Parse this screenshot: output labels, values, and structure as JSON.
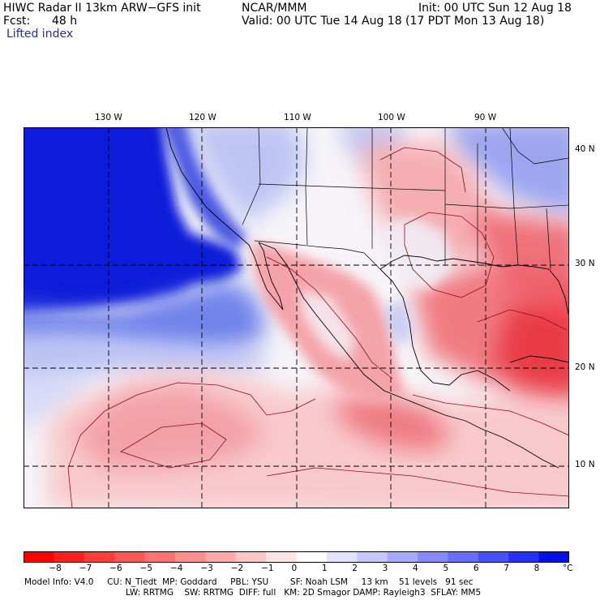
{
  "header": {
    "title_line": "HIWC Radar II 13km ARW−GFS init",
    "org": "NCAR/MMM",
    "fcst_label": "Fcst:",
    "fcst_value": "48 h",
    "init": "Init: 00 UTC Sun 12 Aug 18",
    "valid": "Valid: 00 UTC Tue 14 Aug 18 (17 PDT Mon 13 Aug 18)",
    "field": "Lifted index"
  },
  "map": {
    "lon_labels": [
      "130 W",
      "120 W",
      "110 W",
      "100 W",
      "90 W"
    ],
    "lat_labels": [
      "40 N",
      "30 N",
      "20 N",
      "10 N"
    ],
    "colors": {
      "deep_blue": "#0d1fd9",
      "mid_blue": "#5b6fe8",
      "light_blue": "#c3caf5",
      "white": "#f6f4f8",
      "light_red": "#f8c9cc",
      "mid_red": "#f28c92",
      "deep_red": "#eb3f48",
      "contour": "#8b0c18",
      "boundary": "#000000"
    }
  },
  "colorbar": {
    "tick_labels": [
      "−8",
      "−7",
      "−6",
      "−5",
      "−4",
      "−3",
      "−2",
      "−1",
      "0",
      "1",
      "2",
      "3",
      "4",
      "5",
      "6",
      "7",
      "8"
    ],
    "unit": "°C",
    "colors": [
      "#ff0000",
      "#ff1f1f",
      "#ff3b3b",
      "#ff5656",
      "#ff7272",
      "#ff8e8e",
      "#ffaaaa",
      "#ffc6c6",
      "#ffe4e4",
      "#ffffff",
      "#e2e4ff",
      "#c4c8ff",
      "#a5aaff",
      "#868cff",
      "#666dff",
      "#474fff",
      "#2730ff",
      "#0510e8"
    ]
  },
  "footer": {
    "line1": "Model Info: V4.0     CU: N_Tiedt  MP: Goddard     PBL: YSU        SF: Noah LSM     13 km    51 levels   91 sec",
    "line2": "LW: RRTMG    SW: RRTMG  DIFF: full   KM: 2D Smagor DAMP: Rayleigh3  SFLAY: MM5"
  }
}
